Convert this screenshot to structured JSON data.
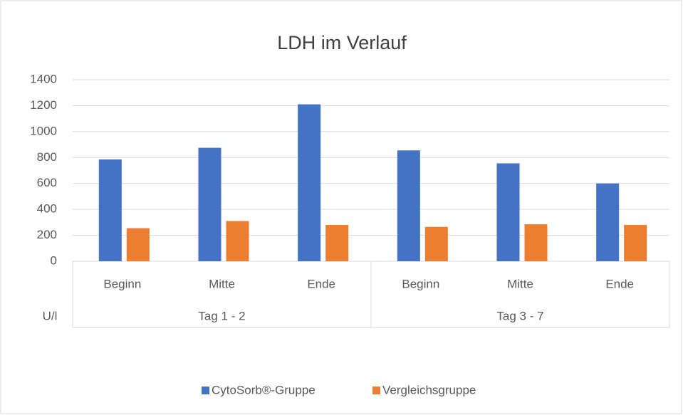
{
  "chart_data": {
    "type": "bar",
    "title": "LDH im Verlauf",
    "y_label": "U/l",
    "category_groups": [
      {
        "name": "Tag 1 - 2",
        "categories": [
          "Beginn",
          "Mitte",
          "Ende"
        ]
      },
      {
        "name": "Tag 3 - 7",
        "categories": [
          "Beginn",
          "Mitte",
          "Ende"
        ]
      }
    ],
    "series": [
      {
        "name": "CytoSorb®-Gruppe",
        "color": "#4472c4",
        "values": [
          785,
          875,
          1210,
          855,
          755,
          600
        ]
      },
      {
        "name": "Vergleichsgruppe",
        "color": "#ed7d31",
        "values": [
          255,
          310,
          280,
          265,
          285,
          280
        ]
      }
    ],
    "ylim": [
      0,
      1400
    ],
    "yticks": [
      0,
      200,
      400,
      600,
      800,
      1000,
      1200,
      1400
    ],
    "grid": true,
    "legend": "bottom"
  }
}
